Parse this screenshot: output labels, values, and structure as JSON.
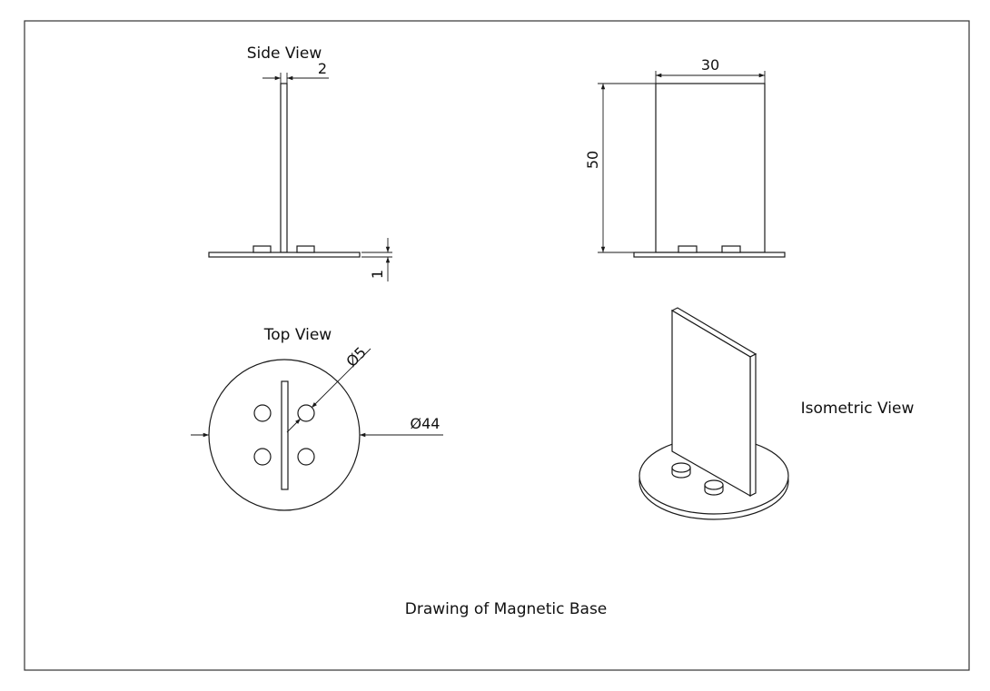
{
  "views": {
    "side": "Side View",
    "top": "Top View",
    "isometric": "Isometric View"
  },
  "dimensions": {
    "plate_thickness": "2",
    "base_thickness": "1",
    "width": "30",
    "height": "50",
    "hole_diameter": "Ø5",
    "base_diameter": "Ø44"
  },
  "caption": "Drawing of Magnetic Base",
  "colors": {
    "line": "#1a1a1a",
    "background": "#ffffff"
  }
}
